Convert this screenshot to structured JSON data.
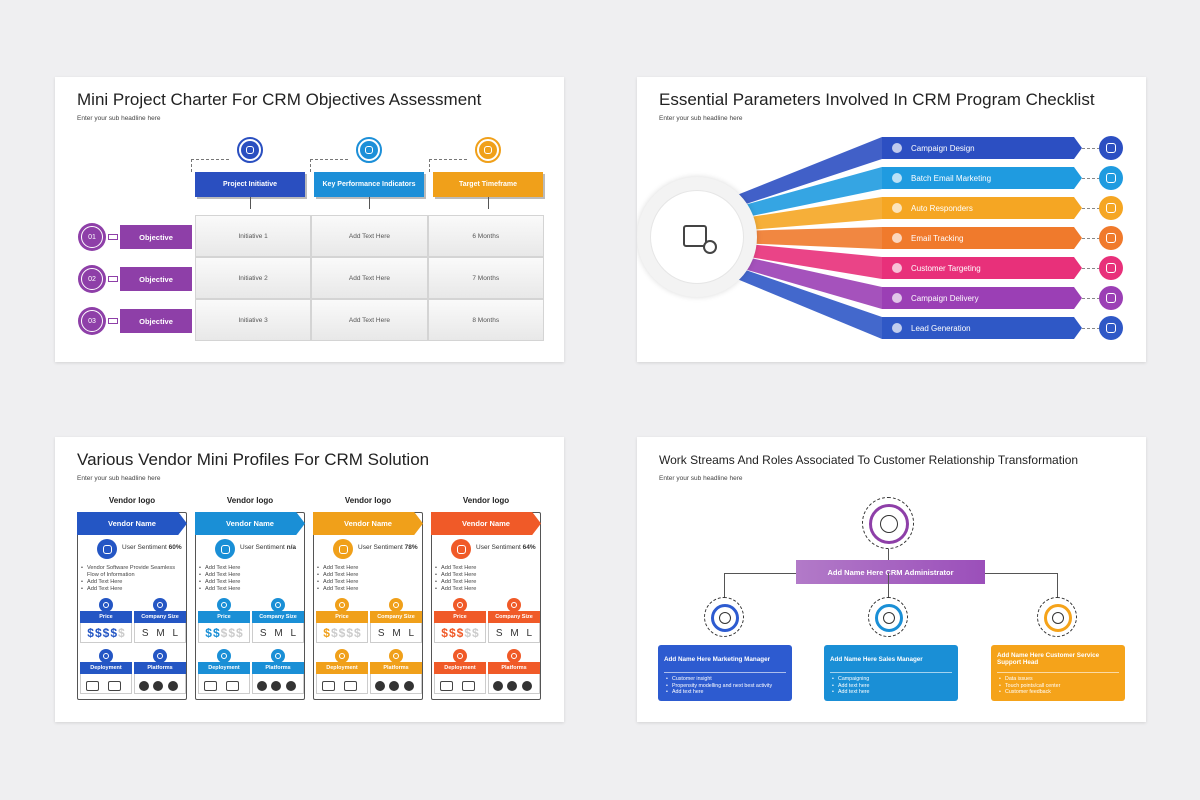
{
  "slides": [
    {
      "title": "Mini Project Charter For CRM Objectives Assessment",
      "subtitle": "Enter your sub headline here",
      "columns": [
        "Project Initiative",
        "Key Performance Indicators",
        "Target Timeframe"
      ],
      "rows": [
        {
          "number": "01",
          "label": "Objective",
          "cells": [
            "Initiative 1",
            "Add Text Here",
            "6 Months"
          ]
        },
        {
          "number": "02",
          "label": "Objective",
          "cells": [
            "Initiative 2",
            "Add Text Here",
            "7 Months"
          ]
        },
        {
          "number": "03",
          "label": "Objective",
          "cells": [
            "Initiative 3",
            "Add Text Here",
            "8 Months"
          ]
        }
      ]
    },
    {
      "title": "Essential Parameters Involved In CRM Program Checklist",
      "subtitle": "Enter your sub headline here",
      "items": [
        "Campaign Design",
        "Batch Email Marketing",
        "Auto Responders",
        "Email Tracking",
        "Customer Targeting",
        "Campaign Delivery",
        "Lead Generation"
      ]
    },
    {
      "title": "Various Vendor Mini Profiles For CRM Solution",
      "subtitle": "Enter your sub headline here",
      "vendors": [
        {
          "logo": "Vendor logo",
          "name": "Vendor Name",
          "sentiment_label": "User Sentiment",
          "sentiment": "60%",
          "bullets": [
            "Vendor Software Provide Seamless Flow of Information",
            "Add Text Here",
            "Add Text Here"
          ],
          "price": "Price",
          "company_size": "Company Size",
          "price_scale": [
            "$",
            "$",
            "$",
            "$",
            "$"
          ],
          "price_level": 4,
          "sizes": [
            "S",
            "M",
            "L"
          ],
          "deployment": "Deployment",
          "platforms": "Platforms"
        },
        {
          "logo": "Vendor logo",
          "name": "Vendor Name",
          "sentiment_label": "User Sentiment",
          "sentiment": "n/a",
          "bullets": [
            "Add Text Here",
            "Add Text Here",
            "Add Text Here",
            "Add Text Here"
          ],
          "price": "Price",
          "company_size": "Company Size",
          "price_scale": [
            "$",
            "$",
            "$",
            "$",
            "$"
          ],
          "price_level": 2,
          "sizes": [
            "S",
            "M",
            "L"
          ],
          "deployment": "Deployment",
          "platforms": "Platforms"
        },
        {
          "logo": "Vendor logo",
          "name": "Vendor Name",
          "sentiment_label": "User Sentiment",
          "sentiment": "78%",
          "bullets": [
            "Add Text Here",
            "Add Text Here",
            "Add Text Here",
            "Add Text Here"
          ],
          "price": "Price",
          "company_size": "Company Size",
          "price_scale": [
            "$",
            "$",
            "$",
            "$",
            "$"
          ],
          "price_level": 1,
          "sizes": [
            "S",
            "M",
            "L"
          ],
          "deployment": "Deployment",
          "platforms": "Platforms"
        },
        {
          "logo": "Vendor logo",
          "name": "Vendor Name",
          "sentiment_label": "User Sentiment",
          "sentiment": "64%",
          "bullets": [
            "Add Text Here",
            "Add Text Here",
            "Add Text Here",
            "Add Text Here"
          ],
          "price": "Price",
          "company_size": "Company Size",
          "price_scale": [
            "$",
            "$",
            "$",
            "$",
            "$"
          ],
          "price_level": 3,
          "sizes": [
            "S",
            "M",
            "L"
          ],
          "deployment": "Deployment",
          "platforms": "Platforms"
        }
      ]
    },
    {
      "title": "Work Streams And Roles Associated To Customer Relationship Transformation",
      "subtitle": "Enter your sub headline here",
      "head": "Add Name Here CRM Administrator",
      "roles": [
        {
          "title": "Add Name Here Marketing Manager",
          "bullets": [
            "Customer insight",
            "Propensity modelling and next best activity",
            "Add text here"
          ]
        },
        {
          "title": "Add Name Here Sales Manager",
          "bullets": [
            "Campaigning",
            "Add text here",
            "Add text here"
          ]
        },
        {
          "title": "Add Name Here Customer Service Support Head",
          "bullets": [
            "Data issues",
            "Touch points/call center",
            "Customer feedback"
          ]
        }
      ]
    }
  ]
}
